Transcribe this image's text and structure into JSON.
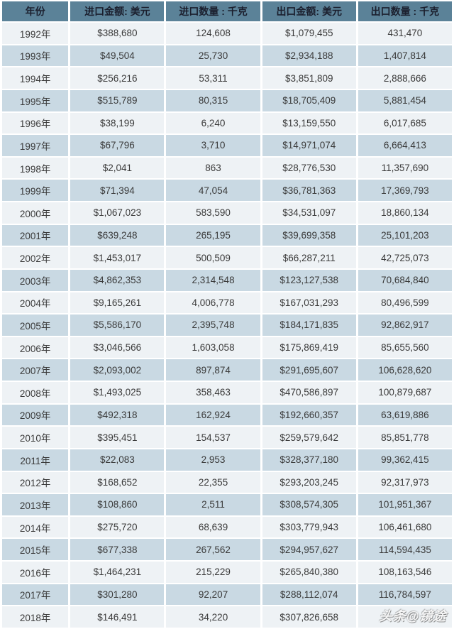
{
  "colors": {
    "header_bg": "#5b8298",
    "row_light": "#eef2f5",
    "row_dark": "#c9d9e3",
    "separator": "#ffffff",
    "header_text": "#1b1f2e",
    "body_text": "#3a3a3a"
  },
  "watermark": {
    "text": "头条@镜途"
  },
  "chart_data": {
    "type": "table",
    "columns": [
      "年份",
      "进口金额: 美元",
      "进口数量 : 千克",
      "出口金额: 美元",
      "出口数量 : 千克"
    ],
    "rows": [
      [
        "1992年",
        "$388,680",
        "124,608",
        "$1,079,455",
        "431,470"
      ],
      [
        "1993年",
        "$49,504",
        "25,730",
        "$2,934,188",
        "1,407,814"
      ],
      [
        "1994年",
        "$256,216",
        "53,311",
        "$3,851,809",
        "2,888,666"
      ],
      [
        "1995年",
        "$515,789",
        "80,315",
        "$18,705,409",
        "5,881,454"
      ],
      [
        "1996年",
        "$38,199",
        "6,240",
        "$13,159,550",
        "6,017,685"
      ],
      [
        "1997年",
        "$67,796",
        "3,710",
        "$14,971,074",
        "6,664,413"
      ],
      [
        "1998年",
        "$2,041",
        "863",
        "$28,776,530",
        "11,357,690"
      ],
      [
        "1999年",
        "$71,394",
        "47,054",
        "$36,781,363",
        "17,369,793"
      ],
      [
        "2000年",
        "$1,067,023",
        "583,590",
        "$34,531,097",
        "18,860,134"
      ],
      [
        "2001年",
        "$639,248",
        "265,195",
        "$39,699,358",
        "25,101,203"
      ],
      [
        "2002年",
        "$1,453,017",
        "500,509",
        "$66,287,211",
        "42,725,073"
      ],
      [
        "2003年",
        "$4,862,353",
        "2,314,548",
        "$123,127,538",
        "70,684,840"
      ],
      [
        "2004年",
        "$9,165,261",
        "4,006,778",
        "$167,031,293",
        "80,496,599"
      ],
      [
        "2005年",
        "$5,586,170",
        "2,395,748",
        "$184,171,835",
        "92,862,917"
      ],
      [
        "2006年",
        "$3,046,566",
        "1,603,058",
        "$175,869,419",
        "85,655,560"
      ],
      [
        "2007年",
        "$2,093,002",
        "897,874",
        "$291,695,607",
        "106,628,620"
      ],
      [
        "2008年",
        "$1,493,025",
        "358,463",
        "$470,586,897",
        "100,879,687"
      ],
      [
        "2009年",
        "$492,318",
        "162,924",
        "$192,660,357",
        "63,619,886"
      ],
      [
        "2010年",
        "$395,451",
        "154,537",
        "$259,579,642",
        "85,851,778"
      ],
      [
        "2011年",
        "$22,083",
        "2,953",
        "$328,377,180",
        "99,362,415"
      ],
      [
        "2012年",
        "$168,652",
        "22,355",
        "$293,203,245",
        "92,317,973"
      ],
      [
        "2013年",
        "$108,860",
        "2,511",
        "$308,574,305",
        "101,951,367"
      ],
      [
        "2014年",
        "$275,720",
        "68,639",
        "$303,779,943",
        "106,461,680"
      ],
      [
        "2015年",
        "$677,338",
        "267,562",
        "$294,957,627",
        "114,594,435"
      ],
      [
        "2016年",
        "$1,464,231",
        "215,229",
        "$265,840,380",
        "108,163,546"
      ],
      [
        "2017年",
        "$301,280",
        "92,207",
        "$288,112,074",
        "116,784,597"
      ],
      [
        "2018年",
        "$146,491",
        "34,220",
        "$307,826,658",
        ""
      ]
    ]
  }
}
